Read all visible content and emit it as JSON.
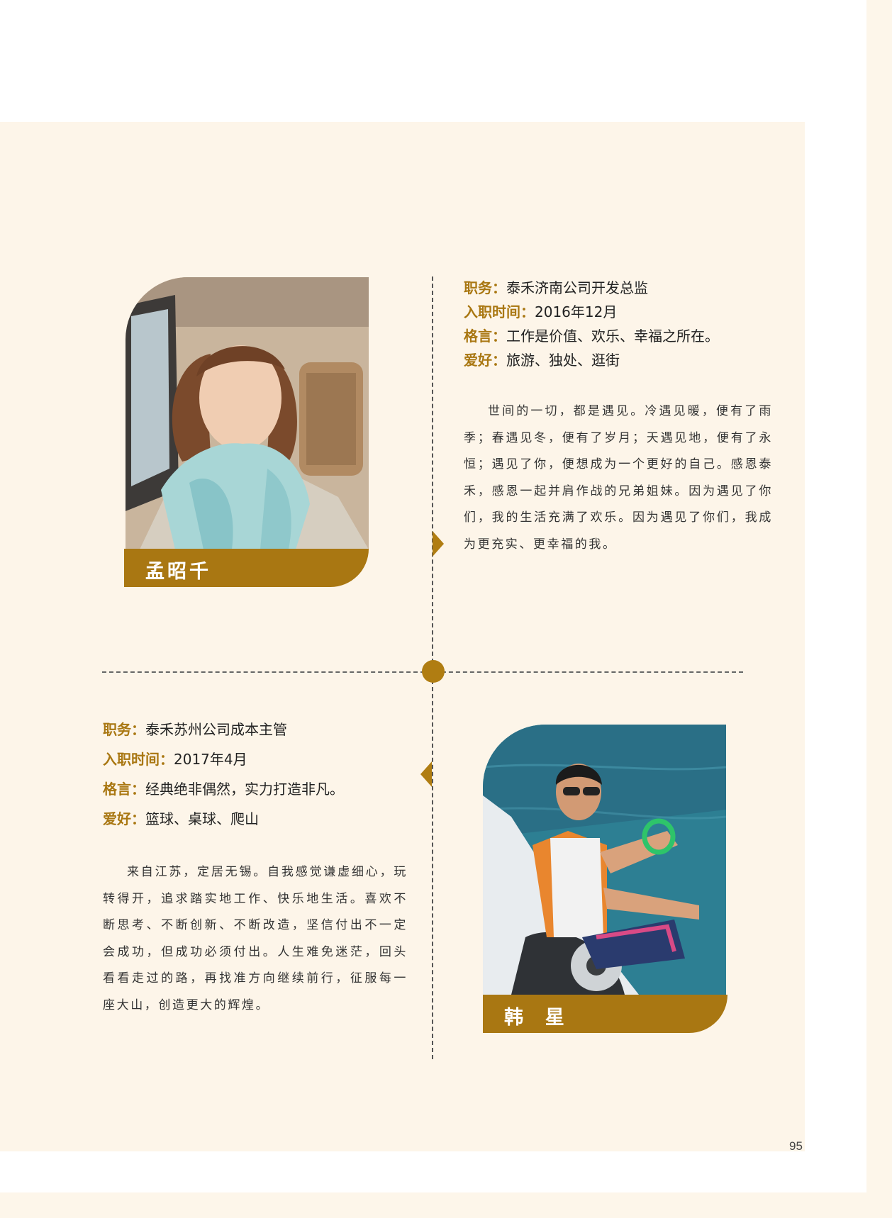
{
  "page_number": "95",
  "accent_color": "#a97712",
  "profiles": [
    {
      "name": "孟昭千",
      "fields": [
        {
          "label": "职务：",
          "value": "泰禾济南公司开发总监"
        },
        {
          "label": "入职时间：",
          "value": "2016年12月"
        },
        {
          "label": "格言：",
          "value": "工作是价值、欢乐、幸福之所在。"
        },
        {
          "label": "爱好：",
          "value": "旅游、独处、逛街"
        }
      ],
      "paragraph": "世间的一切，都是遇见。冷遇见暖，便有了雨季；春遇见冬，便有了岁月；天遇见地，便有了永恒；遇见了你，便想成为一个更好的自己。感恩泰禾，感恩一起并肩作战的兄弟姐妹。因为遇见了你们，我的生活充满了欢乐。因为遇见了你们，我成为更充实、更幸福的我。"
    },
    {
      "name": "韩  星",
      "fields": [
        {
          "label": "职务：",
          "value": "泰禾苏州公司成本主管"
        },
        {
          "label": "入职时间：",
          "value": "2017年4月"
        },
        {
          "label": "格言：",
          "value": "经典绝非偶然，实力打造非凡。"
        },
        {
          "label": "爱好：",
          "value": "篮球、桌球、爬山"
        }
      ],
      "paragraph": "来自江苏，定居无锡。自我感觉谦虚细心，玩转得开，追求踏实地工作、快乐地生活。喜欢不断思考、不断创新、不断改造，坚信付出不一定会成功，但成功必须付出。人生难免迷茫，回头看看走过的路，再找准方向继续前行，征服每一座大山，创造更大的辉煌。"
    }
  ]
}
